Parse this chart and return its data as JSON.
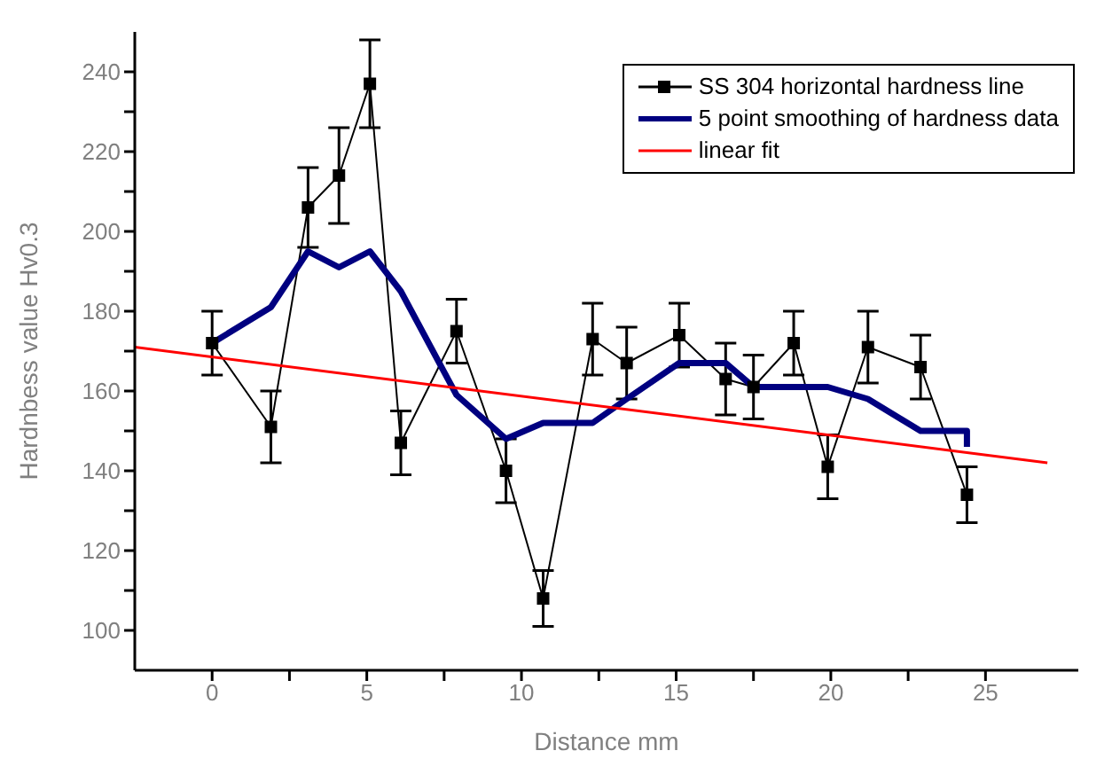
{
  "chart_data": {
    "type": "line",
    "xlabel": "Distance mm",
    "ylabel": "Hardnbess value Hv0.3",
    "xlim": [
      -2.5,
      28
    ],
    "ylim": [
      90,
      250
    ],
    "xticks": [
      0,
      {
        "value": 2.5,
        "label": null
      },
      5,
      {
        "value": 7.5,
        "label": null
      },
      10,
      {
        "value": 12.5,
        "label": null
      },
      15,
      {
        "value": 17.5,
        "label": null
      },
      20,
      {
        "value": 22.5,
        "label": null
      },
      25
    ],
    "yticks": [
      100,
      {
        "value": 110,
        "label": null
      },
      120,
      {
        "value": 130,
        "label": null
      },
      140,
      {
        "value": 150,
        "label": null
      },
      160,
      {
        "value": 170,
        "label": null
      },
      180,
      {
        "value": 190,
        "label": null
      },
      200,
      {
        "value": 210,
        "label": null
      },
      220,
      {
        "value": 230,
        "label": null
      },
      240
    ],
    "legend": "top right",
    "series": [
      {
        "name": "SS 304 horizontal hardness line",
        "color": "#000000",
        "marker": "square",
        "x": [
          0,
          1.9,
          3.1,
          4.1,
          5.1,
          6.1,
          7.9,
          9.5,
          10.7,
          12.3,
          13.4,
          15.1,
          16.6,
          17.5,
          18.8,
          19.9,
          21.2,
          22.9,
          24.4
        ],
        "values": [
          172,
          151,
          206,
          214,
          237,
          147,
          175,
          140,
          108,
          173,
          167,
          174,
          163,
          161,
          172,
          141,
          171,
          166,
          134
        ],
        "errors": [
          8,
          9,
          10,
          12,
          11,
          8,
          8,
          8,
          7,
          9,
          9,
          8,
          9,
          8,
          8,
          8,
          9,
          8,
          7
        ]
      },
      {
        "name": "5 point smoothing of hardness data",
        "color": "#000080",
        "marker": "none",
        "x": [
          0,
          1.9,
          3.1,
          4.1,
          5.1,
          6.1,
          7.9,
          9.5,
          10.7,
          12.3,
          13.4,
          15.1,
          16.6,
          17.5,
          18.8,
          19.9,
          21.2,
          22.9,
          24.4,
          24.4
        ],
        "values": [
          172,
          181,
          195,
          191,
          195,
          185,
          159,
          148,
          152,
          152,
          158,
          167,
          167,
          161,
          161,
          161,
          158,
          150,
          150,
          146
        ]
      },
      {
        "name": "linear fit",
        "color": "#ff0000",
        "marker": "none",
        "x": [
          -2.5,
          27
        ],
        "values": [
          171,
          142
        ]
      }
    ]
  }
}
